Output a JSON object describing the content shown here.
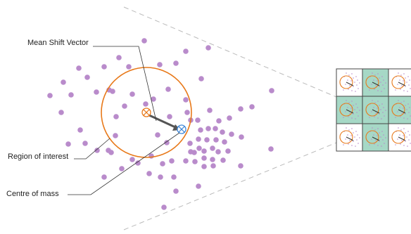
{
  "labels": {
    "mean_shift_vector": "Mean Shift Vector",
    "region_of_interest": "Region of interest",
    "centre_of_mass": "Centre of mass"
  },
  "colors": {
    "point": "#b98bcb",
    "circle": "#e8791a",
    "centre_marker": "#3f87d8",
    "vector": "#555555",
    "cell_highlight": "#a6d8c6",
    "dashed_line": "#bbbbbb"
  },
  "icons": {
    "initial_window_marker": "circled-x-orange",
    "centre_of_mass_marker": "circled-x-blue"
  },
  "grid": {
    "rows": 3,
    "columns": 3,
    "highlighted_cells": [
      [
        0,
        1
      ],
      [
        1,
        0
      ],
      [
        1,
        1
      ],
      [
        1,
        2
      ],
      [
        2,
        1
      ]
    ]
  }
}
